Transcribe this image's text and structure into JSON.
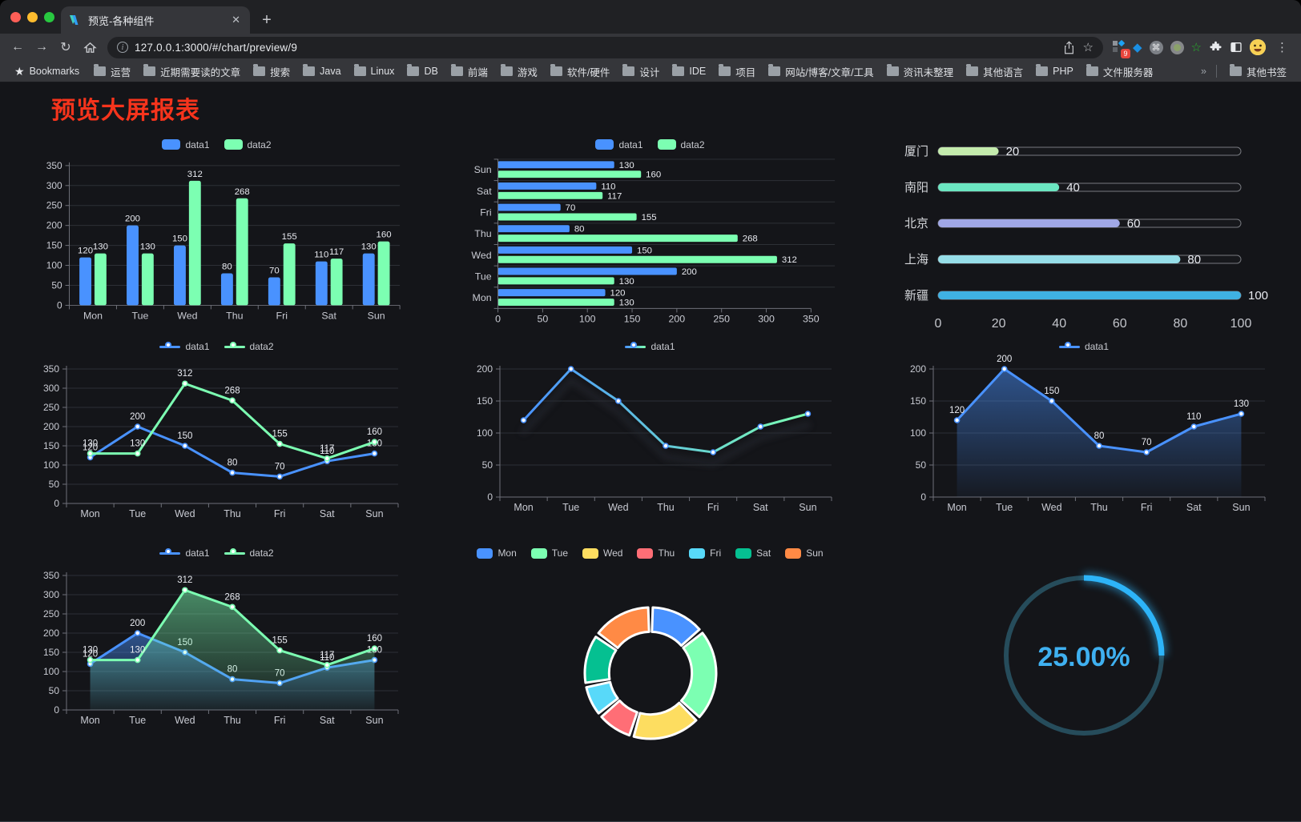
{
  "browser": {
    "tab_title": "预览-各种组件",
    "tab_close_icon": "✕",
    "newtab_icon": "+",
    "url": "127.0.0.1:3000/#/chart/preview/9",
    "url_info_icon": "i",
    "icons": {
      "back": "←",
      "forward": "→",
      "reload": "↻",
      "home": "⌂",
      "star": "☆",
      "more": "⋮",
      "cmd": "⌘",
      "diamond": "◆",
      "green_star": "☆"
    },
    "extension_badge": "9",
    "bookmarks_label": "Bookmarks",
    "bookmarks": [
      "运营",
      "近期需要读的文章",
      "搜索",
      "Java",
      "Linux",
      "DB",
      "前端",
      "游戏",
      "软件/硬件",
      "设计",
      "IDE",
      "项目",
      "网站/博客/文章/工具",
      "资讯未整理",
      "其他语言",
      "PHP",
      "文件服务器"
    ],
    "bookmarks_overflow": "»",
    "other_bookmarks": "其他书签"
  },
  "page": {
    "title": "预览大屏报表",
    "title_color": "#f6341c",
    "background": "#141519"
  },
  "palette": {
    "axis": "#6E7079",
    "grid": "#2d3036",
    "tick_label": "#c8cad2",
    "value_label": "#e8eaf0"
  },
  "chart_data": [
    {
      "id": "bar-vertical",
      "type": "bar",
      "categories": [
        "Mon",
        "Tue",
        "Wed",
        "Thu",
        "Fri",
        "Sat",
        "Sun"
      ],
      "series": [
        {
          "name": "data1",
          "color": "#4992ff",
          "values": [
            120,
            200,
            150,
            80,
            70,
            110,
            130
          ]
        },
        {
          "name": "data2",
          "color": "#7cffb2",
          "values": [
            130,
            130,
            312,
            268,
            155,
            117,
            160
          ]
        }
      ],
      "ylim": [
        0,
        350
      ],
      "yticks": [
        0,
        50,
        100,
        150,
        200,
        250,
        300,
        350
      ],
      "legend_position": "top",
      "grid": true,
      "value_labels": true
    },
    {
      "id": "bar-horizontal",
      "type": "hbar",
      "categories_top_to_bottom": [
        "Sun",
        "Sat",
        "Fri",
        "Thu",
        "Wed",
        "Tue",
        "Mon"
      ],
      "series": [
        {
          "name": "data1",
          "color": "#4992ff",
          "values_top_to_bottom": [
            130,
            110,
            70,
            80,
            150,
            200,
            120
          ]
        },
        {
          "name": "data2",
          "color": "#7cffb2",
          "values_top_to_bottom": [
            160,
            117,
            155,
            268,
            312,
            130,
            130
          ]
        }
      ],
      "xlim": [
        0,
        350
      ],
      "xticks": [
        0,
        50,
        100,
        150,
        200,
        250,
        300,
        350
      ],
      "legend_position": "top",
      "value_labels": true
    },
    {
      "id": "progress-bars",
      "type": "progress",
      "items": [
        {
          "label": "厦门",
          "value": 20,
          "color": "#c4ebad"
        },
        {
          "label": "南阳",
          "value": 40,
          "color": "#6be6c1"
        },
        {
          "label": "北京",
          "value": 60,
          "color": "#a0a7e6"
        },
        {
          "label": "上海",
          "value": 80,
          "color": "#96dee8"
        },
        {
          "label": "新疆",
          "value": 100,
          "color": "#3fb1e3"
        }
      ],
      "max": 100,
      "xticks": [
        0,
        20,
        40,
        60,
        80,
        100
      ]
    },
    {
      "id": "line-two-series",
      "type": "line",
      "categories": [
        "Mon",
        "Tue",
        "Wed",
        "Thu",
        "Fri",
        "Sat",
        "Sun"
      ],
      "series": [
        {
          "name": "data1",
          "color": "#4992ff",
          "values": [
            120,
            200,
            150,
            80,
            70,
            110,
            130
          ]
        },
        {
          "name": "data2",
          "color": "#7cffb2",
          "values": [
            130,
            130,
            312,
            268,
            155,
            117,
            160
          ]
        }
      ],
      "ylim": [
        0,
        350
      ],
      "yticks": [
        0,
        50,
        100,
        150,
        200,
        250,
        300,
        350
      ],
      "legend_position": "top",
      "value_labels": true
    },
    {
      "id": "line-gradient",
      "type": "line-gradient",
      "categories": [
        "Mon",
        "Tue",
        "Wed",
        "Thu",
        "Fri",
        "Sat",
        "Sun"
      ],
      "series": [
        {
          "name": "data1",
          "gradient": [
            "#4992ff",
            "#7cffb2"
          ],
          "values": [
            120,
            200,
            150,
            80,
            70,
            110,
            130
          ]
        }
      ],
      "ylim": [
        0,
        200
      ],
      "yticks": [
        0,
        50,
        100,
        150,
        200
      ],
      "legend_position": "top",
      "value_labels": false
    },
    {
      "id": "area-single",
      "type": "area",
      "categories": [
        "Mon",
        "Tue",
        "Wed",
        "Thu",
        "Fri",
        "Sat",
        "Sun"
      ],
      "series": [
        {
          "name": "data1",
          "color": "#4992ff",
          "values": [
            120,
            200,
            150,
            80,
            70,
            110,
            130
          ]
        }
      ],
      "ylim": [
        0,
        200
      ],
      "yticks": [
        0,
        50,
        100,
        150,
        200
      ],
      "legend_position": "top",
      "value_labels": true
    },
    {
      "id": "area-two-series",
      "type": "area",
      "categories": [
        "Mon",
        "Tue",
        "Wed",
        "Thu",
        "Fri",
        "Sat",
        "Sun"
      ],
      "series": [
        {
          "name": "data1",
          "color": "#4992ff",
          "values": [
            120,
            200,
            150,
            80,
            70,
            110,
            130
          ]
        },
        {
          "name": "data2",
          "color": "#7cffb2",
          "values": [
            130,
            130,
            312,
            268,
            155,
            117,
            160
          ]
        }
      ],
      "ylim": [
        0,
        350
      ],
      "yticks": [
        0,
        50,
        100,
        150,
        200,
        250,
        300,
        350
      ],
      "legend_position": "top",
      "value_labels": true
    },
    {
      "id": "donut",
      "type": "pie",
      "categories": [
        "Mon",
        "Tue",
        "Wed",
        "Thu",
        "Fri",
        "Sat",
        "Sun"
      ],
      "values": [
        120,
        200,
        150,
        80,
        70,
        110,
        130
      ],
      "colors": [
        "#4992ff",
        "#7cffb2",
        "#fddd60",
        "#ff6e76",
        "#58d9f9",
        "#05c091",
        "#ff8a45"
      ],
      "inner_radius_ratio": 0.63,
      "legend_position": "top",
      "border_color": "#ffffff"
    },
    {
      "id": "gauge",
      "type": "gauge",
      "value": 25,
      "label": "25.00%",
      "color": "#2db4f8",
      "track_color": "#264c5b",
      "text_color": "#3fb0f0"
    }
  ]
}
